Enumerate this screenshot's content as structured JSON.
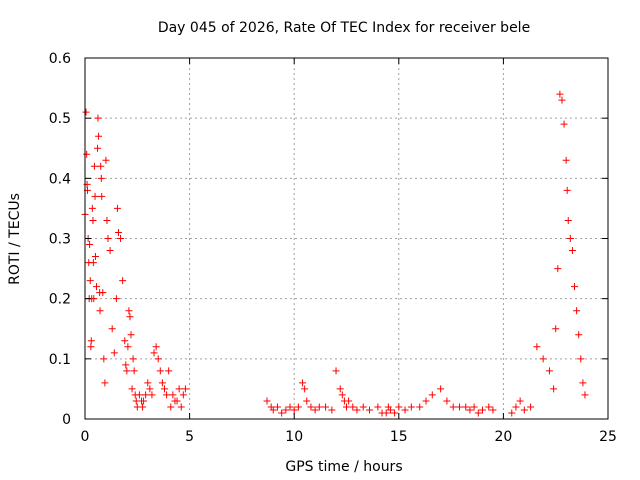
{
  "chart_data": {
    "type": "scatter",
    "title": "Day 045 of 2026, Rate Of TEC Index for receiver bele",
    "xlabel": "GPS time / hours",
    "ylabel": "ROTI / TECUs",
    "xlim": [
      0,
      25
    ],
    "ylim": [
      0,
      0.6
    ],
    "xticks": [
      "0",
      "5",
      "10",
      "15",
      "20",
      "25"
    ],
    "yticks": [
      "0",
      "0.1",
      "0.2",
      "0.3",
      "0.4",
      "0.5",
      "0.6"
    ],
    "grid": true,
    "marker": "plus",
    "color": "#ff0000",
    "series": [
      {
        "x": [
          0.0,
          0.05,
          0.08,
          0.1,
          0.12,
          0.15,
          0.18,
          0.2,
          0.22,
          0.25,
          0.28,
          0.3,
          0.32,
          0.35,
          0.38,
          0.4,
          0.42,
          0.45,
          0.48,
          0.5,
          0.55,
          0.6,
          0.62,
          0.65,
          0.7,
          0.72,
          0.75,
          0.78,
          0.8,
          0.85,
          0.9,
          0.95,
          1.0,
          1.05,
          1.1,
          1.2,
          1.3,
          1.4,
          1.5,
          1.55,
          1.6,
          1.7,
          1.8,
          1.9,
          1.95,
          2.0,
          2.05,
          2.1,
          2.15,
          2.2,
          2.25,
          2.3,
          2.35,
          2.4,
          2.45,
          2.5,
          2.6,
          2.7,
          2.75,
          2.8,
          2.9,
          3.0,
          3.1,
          3.2,
          3.3,
          3.4,
          3.5,
          3.6,
          3.7,
          3.8,
          3.9,
          4.0,
          4.1,
          4.2,
          4.3,
          4.4,
          4.5,
          4.6,
          4.7,
          4.8,
          8.7,
          8.9,
          9.0,
          9.2,
          9.4,
          9.6,
          9.8,
          10.0,
          10.2,
          10.4,
          10.5,
          10.6,
          10.8,
          11.0,
          11.2,
          11.5,
          11.8,
          12.0,
          12.2,
          12.3,
          12.4,
          12.5,
          12.6,
          12.8,
          13.0,
          13.3,
          13.6,
          14.0,
          14.2,
          14.4,
          14.5,
          14.6,
          14.8,
          15.0,
          15.3,
          15.6,
          16.0,
          16.3,
          16.6,
          17.0,
          17.3,
          17.6,
          17.9,
          18.2,
          18.4,
          18.6,
          18.8,
          19.0,
          19.3,
          19.5,
          20.4,
          20.6,
          20.8,
          21.0,
          21.3,
          21.6,
          21.9,
          22.2,
          22.4,
          22.5,
          22.6,
          22.7,
          22.8,
          22.9,
          23.0,
          23.05,
          23.1,
          23.2,
          23.3,
          23.4,
          23.5,
          23.6,
          23.7,
          23.8,
          23.9
        ],
        "y": [
          0.34,
          0.51,
          0.44,
          0.39,
          0.38,
          0.3,
          0.26,
          0.2,
          0.29,
          0.23,
          0.12,
          0.13,
          0.2,
          0.35,
          0.33,
          0.26,
          0.2,
          0.42,
          0.37,
          0.27,
          0.22,
          0.45,
          0.5,
          0.47,
          0.21,
          0.18,
          0.42,
          0.4,
          0.37,
          0.21,
          0.1,
          0.06,
          0.43,
          0.33,
          0.3,
          0.28,
          0.15,
          0.11,
          0.2,
          0.35,
          0.31,
          0.3,
          0.23,
          0.13,
          0.09,
          0.08,
          0.12,
          0.18,
          0.17,
          0.14,
          0.05,
          0.1,
          0.08,
          0.04,
          0.03,
          0.02,
          0.04,
          0.03,
          0.02,
          0.03,
          0.04,
          0.06,
          0.05,
          0.04,
          0.11,
          0.12,
          0.1,
          0.08,
          0.06,
          0.05,
          0.04,
          0.08,
          0.02,
          0.04,
          0.03,
          0.03,
          0.05,
          0.02,
          0.04,
          0.05,
          0.03,
          0.02,
          0.015,
          0.02,
          0.01,
          0.015,
          0.02,
          0.015,
          0.02,
          0.06,
          0.05,
          0.03,
          0.02,
          0.015,
          0.02,
          0.02,
          0.015,
          0.08,
          0.05,
          0.04,
          0.03,
          0.02,
          0.03,
          0.02,
          0.015,
          0.02,
          0.015,
          0.02,
          0.01,
          0.01,
          0.02,
          0.015,
          0.01,
          0.02,
          0.015,
          0.02,
          0.02,
          0.03,
          0.04,
          0.05,
          0.03,
          0.02,
          0.02,
          0.02,
          0.015,
          0.02,
          0.01,
          0.015,
          0.02,
          0.015,
          0.01,
          0.02,
          0.03,
          0.015,
          0.02,
          0.12,
          0.1,
          0.08,
          0.05,
          0.15,
          0.25,
          0.54,
          0.53,
          0.49,
          0.43,
          0.38,
          0.33,
          0.3,
          0.28,
          0.22,
          0.18,
          0.14,
          0.1,
          0.06,
          0.04
        ]
      }
    ]
  }
}
